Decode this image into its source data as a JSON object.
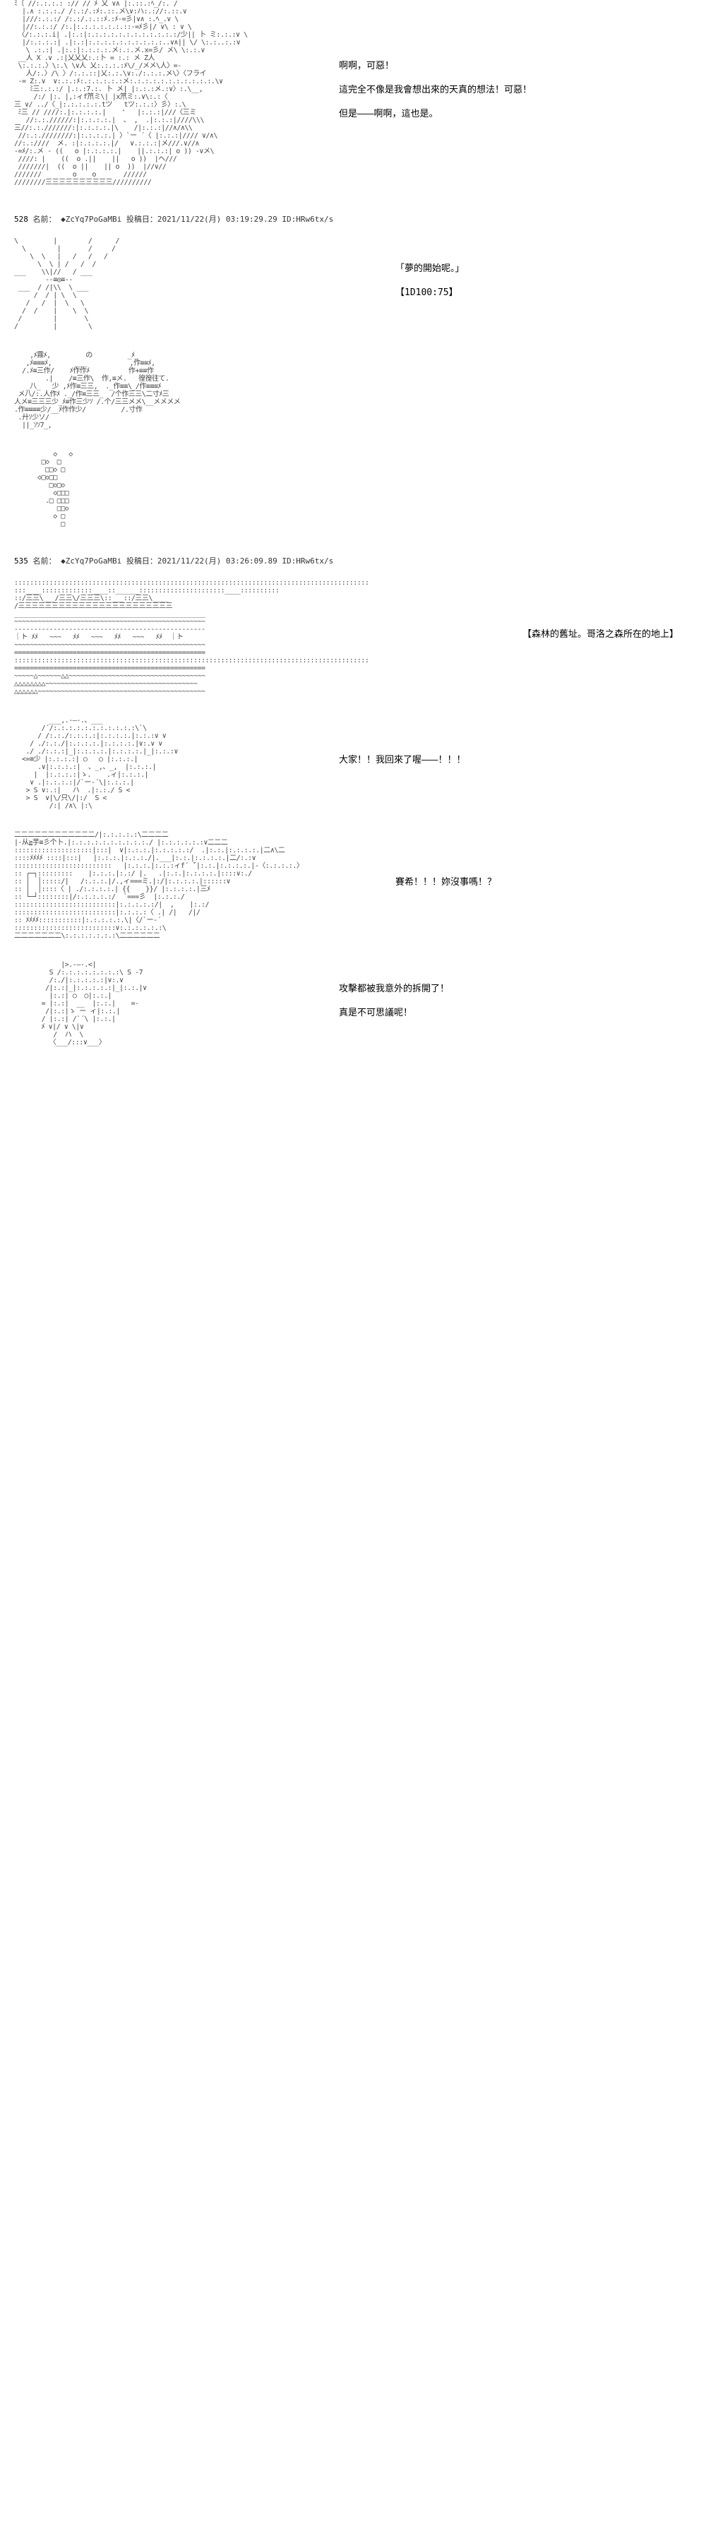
{
  "panels": [
    {
      "type": "panel",
      "width": "narrow",
      "ascii": "ﾐ〔 //:.:.:.: :// // ﾒ 乂 ∨∧ |:.::.:ﾍ_/:. /\n  |.∧ :.:.:./ /:.:/.:ﾒ:.::.メ\\∨:ハ:.://:.::.∨\n  |///:.:.:/ /:.:/.:.::ﾒ.:ﾒ-=彡|∨∧ :.ﾍ_.∨ \\\n  |//:.:.:/ /:.|:.:.:.:.:.:.::‐=ﾒ彡|/ ∨\\ : ∨ \\\n 〈/:.:.:.i| .|:.:|:.:.:.:.:.:.:.:.:.:.:.:/少|| 卜 ミ:.:.:∨ \\\n  |/:.:.:.:| .|:.:|:.:.:.:.:.:.:.:.:.:..∨∧|| \\/ \\:.:..:.:∨\n   \\ .:.:| .|:.:|:.:.:.:.メ:.:.メ.x=彡/ メ\\ \\:.:.∨\n __人 X .∨ .:|乂乂乂:.:卜 = :.: メ Z人\n \\:.:.:.〉\\:.\\ \\∨人 乂:.:.:.:ﾒ\\/_/メメ\\人〉=-\n   人/:.〉/\\ 〉/:.:.::|乂:.:.\\∨:./:.:.:.メ\\〉〈フライ\n ‐= Z:.∨  ∨:.:.:ﾒ:.:.:.:.:.:メ:.:.:.:.:.:.:.:.:.:.:.\\∨\n    ﾐ三:.:.:/ |.:.:7.:. 卜 メ| |:.:.:メ.:∨〉:.\\__,\n     /:/ |:. |,:ィf笊ミ\\| |x笊ミ:.∨\\:.:〈\n三 ∨/ ../〈_|:.:.:.:.:.tツ   tツ:.:.:〉彡〉:.\\\n ﾐ三 // ////:.|:.:.:.:.|    '   |:.:.:|///〈三ミ\n   //:.:.//////:|:.:.:.:.|  、 ,  .|:.:.:|////\\\\\\\n三//:.:.///////:|:.:.:.:.|\\    /|:.:.:|//∧/∧\\\\\n //:.:.////////:|:.:.:.:.| 〉`ー ´〈 |:.:.:|//// ∨/∧\\\n//:.:////  メ. :|:.:.:.:.|/   ∨.:.:.:|メ///.∨//∧\n-=ﾒ/:.メ - ((   o |:.:.:.:.|    ||.:.:.:| o )) -∨メ\\\n ////: |    ((  o .||    ||   o ))  |ヘ///\n ///////|  ((  o ||    || o  ))  |//∨//\n///////        o    o       //////\n////////三三三三三三三三三三//////////",
      "dialog": [
        "啊啊，可惡！",
        "這完全不像是我會想出來的天真的想法！可惡！",
        "但是———啊啊，這也是。"
      ]
    },
    {
      "type": "header",
      "num": "528",
      "name": "◆ZcYq7PoGaMBi",
      "date": "2021/11/22(月) 03:19:29.29",
      "id": "HRw6tx/s"
    },
    {
      "type": "panel",
      "width": "mid",
      "ascii": "\\         |        /      /\n  \\        |       /     /\n    \\  \\   |   /   /   /\n      \\  \\ | /   /  /\n___    \\\\|//   / ___\n        --≡◎≡--\n ___  / /|\\\\  \\ ___\n     /  / | \\  \\\n   /   /  |  \\   \\\n  /  /    |    \\  \\\n /        |       \\\n/         |        \\",
      "dialog": [
        "「夢的開始呢。」",
        "【1D100:75】"
      ]
    },
    {
      "type": "panel",
      "width": "wide",
      "ascii": "    ,ﾒ霧ﾒ,         の         _ﾒ_\n   ,ﾒ≡≡≡ﾒ,      ___           ,作≡≡ﾒ,\n  /.ﾒ≡三作/    ﾒ作作ﾒ          作+≡≡作\n        .|    /≡三作\\  作,≡メ.   徨徨往て.\n   _八_   少 ,ﾒ作≡三三,  ._作≡≡\\_/作≡≡≡ﾒ\n メ八/:.人作ﾒ ._/作≡三三_  /个作三三\\二寸ﾒ三\n人メ≡三三三少_ﾒ≡作三少ｿ /.个/三三メメ\\__メメメメ\n.作≡≡≡≡少/__ﾒ作作少/         /.寸作\n .廾ｿ少ソ/\n  ||_ｿｿ7_,",
      "dialog": []
    },
    {
      "type": "panel",
      "width": "narrow",
      "ascii": "          ◇   ◇\n       □◇  □\n        □□◇ □\n      ◇□◇□□\n         □◇□◇\n          ◇□□□\n        .□ □□□\n           □□◇\n          ◇ □\n            □",
      "dialog": []
    },
    {
      "type": "header",
      "num": "535",
      "name": "◆ZcYq7PoGaMBi",
      "date": "2021/11/22(月) 03:26:09.89",
      "id": "HRw6tx/s"
    },
    {
      "type": "panel",
      "width": "full",
      "ascii": ":::::::::::::::::::::::::::::::::::::::::::::::::::::::::::::::::::::::::::::::::::::::::::\n:::____:::::::::::::____::______::::::::::::::::::::::____::::::::::\n::/三三\\___/三三\\/三三三\\::___::/三三\\____\n/三三三三三三三三三三三三三三三三三三三三三三三\n_________________________________________________\n~~~~~~~~~~~~~~~~~~~~~~~~~~~~~~~~~~~~~~~~~~~~~~~~~\n‐‐‐‐‐‐‐‐‐‐‐‐‐‐‐‐‐‐‐‐‐‐‐‐‐‐‐‐‐‐‐‐‐‐‐‐‐‐‐‐‐‐‐‐‐‐‐‐‐\n｜ト ﾒﾒ   ~~~   ﾒﾒ   ~~~   ﾒﾒ   ~~~   ﾒﾒ  ｜ト\n~~~~~~~~~~~~~~~~~~~~~~~~~~~~~~~~~~~~~~~~~~~~~~~~~\n=================================================\n:::::::::::::::::::::::::::::::::::::::::::::::::::::::::::::::::::::::::::::::::::::::::::\n=================================================\n~~~~~△~~~~~~△△~~~~~~~~~~~~~~~~~~~~~~~~~~~~~~~~~~~\n△△△△△△△△~~~~~~~~~~~~~~~~~~~~~~~~~~~~~~~~~~~~~~~\n△△△△△△~~~~~~~~~~~~~~~~~~~~~~~~~~~~~~~~~~~~~~~~~~~",
      "dialog": [
        "【森林的舊址。哥洛之森所在的地上】"
      ]
    },
    {
      "type": "panel",
      "width": "narrow",
      "ascii": "         ___,.-―-.、___\n       /´/:.:.:.:.:.:.:.:.:.:.:\\`\\\n      / /:.:./:.:.:.:|:.:.:.:.|:.:.:∨ ∨\n    / ./:.:./|:.:.:.:.|:.:.:.:.|∨:.∨ ∨\n   ./ ./:.:.:|_|:.:.:.:.|:.:.:.:.|_|:.:.:∨\n  <=≡少 |:.:.:.:| ○   ○ |:.:.:.|\n      .∨|:.:.:.:|  、_,、_,  |:.:.:.|\n     |  |:.:.:.:|ゝ.    .ィ|:.:.:.|\n    ∨ .|:.:.:.:|/`ー-´\\|:.:.:.|\n   > S ∨:.:|   ハ  .|:.:./ S <\n   > S  ∨|\\/只\\/|:/  S <\n         /:| /∧\\ |:\\",
      "dialog": [
        "大家！！我回來了喔———！！！"
      ]
    },
    {
      "type": "panel",
      "width": "mid",
      "ascii": "二二二二二二二二二二二二/|:.:.:.:.:\\二二二二\n|‐从≧芋≡彡个卜.|:.:.:.:.:.:.:.:.:.:./ |:.:.:.:.:.:∨二二二\n::::::::::::::::::::|:::|  ∨|:.:.:.|:.:.:.:.:/  .|:.:.|:.:.:.:.|二∧\\二\n::::ﾒﾒﾒﾒ ::::|:::|   |:.:.:.|:.:.:./|.___|:.:.|:.:.:.:.|二/:.:∨\n:::::::::::::::::::::::::   |:.:.:.|:.:.:ィf´ ̄`|:.:.|:.:.:.:.|‐〈:.:.:.:.〉\n:: ┌─┐:::::::::    |:.:.:.|:.:/ |.   .|:.:.|:.:.:.:.|::::∨:./\n:: │  │:::::/|   /:.:.:.|/.,ィ===ミ.|:/|:.:.:.:.|::::::∨\n:: │  │::::〈 | ./:.:.:.:.| {{    }}/ |:.:.:.:.|三ﾒ\n:: └─┘::::::::|/:.:.:.:.:/  `===彡  |:.:.:./\n::::::::::::::::::::::::::|:.:.:.:.:/|  ,    |:.:/\n::::::::::::::::::::::::::|:.:.:.:〈 .| /|   /|/\n:: ﾒﾒﾒﾒ:::::::::::|:.:.:.:.:.\\|〈/`ー-´\n::::::::::::::::::::::::::∨:.:.:.:.:.:\\\n二二二二二二二\\:.:.:.:.:.:.:\\二二二二二二",
      "dialog": [
        "賽希！！！妳沒事嗎！？"
      ]
    },
    {
      "type": "panel",
      "width": "narrow",
      "ascii": "            |>.-―-.<|\n         S /:.:.:.:.:.:.:.:\\ S ‐7\n         /:./|:.:.:.:.:|∨:.∨\n        /|:.:|_|:.:.:.:.:|_|:.:.|∨\n         |:.:| ○  ○|:.:.|\n       = |:.:|  __  |:.:.|    =-\n        /|:.:|ゝ ー ィ|:.:.|\n       / |:.:| /`´\\ |:.:.|\n       ﾒ ∨|/ ∨ \\|∨\n          /  ハ  \\\n         〈___/:::∨___〉",
      "dialog": [
        "攻擊都被我意外的拆開了！",
        "真是不可思議呢！"
      ]
    }
  ]
}
